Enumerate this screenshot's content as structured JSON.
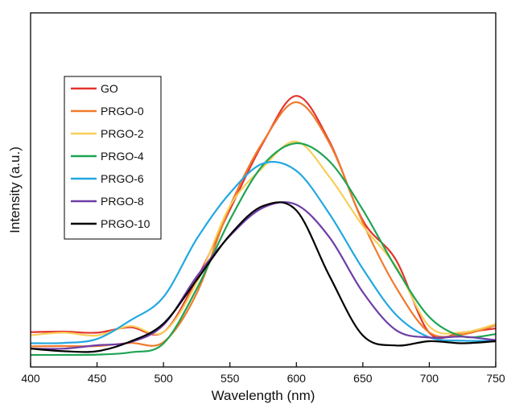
{
  "chart_data": {
    "type": "line",
    "title": "",
    "xlabel": "Wavelength (nm)",
    "ylabel": "Intensity (a.u.)",
    "xlim": [
      400,
      750
    ],
    "ylim": [
      0,
      1
    ],
    "x_ticks": [
      400,
      450,
      500,
      550,
      600,
      650,
      700,
      750
    ],
    "y_ticks_shown": false,
    "grid": false,
    "legend_position": "top-left",
    "x": [
      400,
      425,
      450,
      475,
      500,
      525,
      550,
      575,
      600,
      625,
      650,
      675,
      700,
      725,
      750
    ],
    "series": [
      {
        "name": "GO",
        "color": "#e3342f",
        "values": [
          0.08,
          0.082,
          0.078,
          0.097,
          0.08,
          0.266,
          0.51,
          0.745,
          0.909,
          0.748,
          0.472,
          0.333,
          0.078,
          0.079,
          0.093
        ]
      },
      {
        "name": "PRGO-0",
        "color": "#ef7b2d",
        "values": [
          0.03,
          0.031,
          0.031,
          0.042,
          0.045,
          0.216,
          0.521,
          0.749,
          0.887,
          0.742,
          0.464,
          0.237,
          0.079,
          0.072,
          0.104
        ]
      },
      {
        "name": "PRGO-2",
        "color": "#f7cf5a",
        "values": [
          0.069,
          0.078,
          0.068,
          0.101,
          0.08,
          0.254,
          0.522,
          0.659,
          0.749,
          0.624,
          0.453,
          0.31,
          0.1,
          0.079,
          0.108
        ]
      },
      {
        "name": "PRGO-4",
        "color": "#1fa453",
        "values": [
          0.0,
          0.0,
          0.001,
          0.009,
          0.04,
          0.232,
          0.474,
          0.667,
          0.743,
          0.679,
          0.509,
          0.305,
          0.133,
          0.065,
          0.073
        ]
      },
      {
        "name": "PRGO-6",
        "color": "#22a8e0",
        "values": [
          0.041,
          0.042,
          0.056,
          0.121,
          0.203,
          0.407,
          0.568,
          0.672,
          0.646,
          0.494,
          0.302,
          0.141,
          0.062,
          0.05,
          0.05
        ]
      },
      {
        "name": "PRGO-8",
        "color": "#6e3ea7",
        "values": [
          0.022,
          0.022,
          0.034,
          0.045,
          0.105,
          0.275,
          0.418,
          0.517,
          0.527,
          0.412,
          0.22,
          0.087,
          0.061,
          0.064,
          0.052
        ]
      },
      {
        "name": "PRGO-10",
        "color": "#000000",
        "values": [
          0.022,
          0.013,
          0.013,
          0.047,
          0.11,
          0.263,
          0.421,
          0.523,
          0.507,
          0.276,
          0.068,
          0.033,
          0.048,
          0.041,
          0.048
        ]
      }
    ]
  }
}
